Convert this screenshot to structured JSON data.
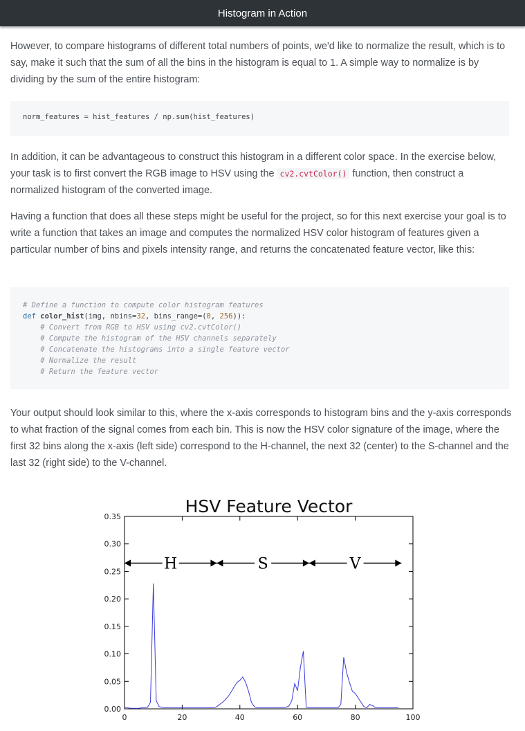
{
  "header": {
    "title": "Histogram in Action"
  },
  "paragraphs": {
    "p1": "However, to compare histograms of different total numbers of points, we'd like to normalize the result, which is to say, make it such that the sum of all the bins in the histogram is equal to 1. A simple way to normalize is by dividing by the sum of the entire histogram:",
    "p2_before": "In addition, it can be advantageous to construct this histogram in a different color space. In the exercise below, your task is to first convert the RGB image to HSV using the ",
    "p2_code": "cv2.cvtColor()",
    "p2_after": " function, then construct a normalized histogram of the converted image.",
    "p3": "Having a function that does all these steps might be useful for the project, so for this next exercise your goal is to write a function that takes an image and computes the normalized HSV color histogram of features given a particular number of bins and pixels intensity range, and returns the concatenated feature vector, like this:",
    "p4": "Your output should look similar to this, where the x-axis corresponds to histogram bins and the y-axis corresponds to what fraction of the signal comes from each bin. This is now the HSV color signature of the image, where the first 32 bins along the x-axis (left side) correspond to the H-channel, the next 32 (center) to the S-channel and the last 32 (right side) to the V-channel."
  },
  "code1": {
    "line": "norm_features = hist_features / np.sum(hist_features)"
  },
  "code2": {
    "l1": "# Define a function to compute color histogram features",
    "l2_kw": "def ",
    "l2_fn": "color_hist",
    "l2_rest_a": "(img, nbins=",
    "l2_n1": "32",
    "l2_rest_b": ", bins_range=(",
    "l2_n2": "0",
    "l2_rest_c": ", ",
    "l2_n3": "256",
    "l2_rest_d": ")):",
    "l3": "    # Convert from RGB to HSV using cv2.cvtColor()",
    "l4": "    # Compute the histogram of the HSV channels separately",
    "l5": "    # Concatenate the histograms into a single feature vector",
    "l6": "    # Normalize the result",
    "l7": "    # Return the feature vector"
  },
  "chart_data": {
    "type": "line",
    "title": "HSV Feature Vector",
    "xlabel": "",
    "ylabel": "",
    "xlim": [
      0,
      100
    ],
    "ylim": [
      0,
      0.35
    ],
    "xticks": [
      "0",
      "20",
      "40",
      "60",
      "80",
      "100"
    ],
    "yticks": [
      "0.00",
      "0.05",
      "0.10",
      "0.15",
      "0.20",
      "0.25",
      "0.30",
      "0.35"
    ],
    "grid": false,
    "color": "#3a3adb",
    "x": [
      0,
      1,
      2,
      3,
      4,
      5,
      6,
      7,
      8,
      9,
      10,
      11,
      12,
      13,
      14,
      15,
      16,
      17,
      18,
      19,
      20,
      21,
      22,
      23,
      24,
      25,
      26,
      27,
      28,
      29,
      30,
      31,
      32,
      33,
      34,
      35,
      36,
      37,
      38,
      39,
      40,
      41,
      42,
      43,
      44,
      45,
      46,
      47,
      48,
      49,
      50,
      51,
      52,
      53,
      54,
      55,
      56,
      57,
      58,
      59,
      60,
      61,
      62,
      63,
      64,
      65,
      66,
      67,
      68,
      69,
      70,
      71,
      72,
      73,
      74,
      75,
      76,
      77,
      78,
      79,
      80,
      81,
      82,
      83,
      84,
      85,
      86,
      87,
      88,
      89,
      90,
      91,
      92,
      93,
      94,
      95
    ],
    "y": [
      0.003,
      0.002,
      0.001,
      0.001,
      0.001,
      0.001,
      0.002,
      0.002,
      0.003,
      0.012,
      0.228,
      0.015,
      0.004,
      0.003,
      0.002,
      0.002,
      0.002,
      0.002,
      0.002,
      0.002,
      0.002,
      0.002,
      0.002,
      0.002,
      0.002,
      0.002,
      0.002,
      0.002,
      0.002,
      0.002,
      0.002,
      0.002,
      0.004,
      0.008,
      0.012,
      0.017,
      0.023,
      0.031,
      0.04,
      0.048,
      0.052,
      0.058,
      0.048,
      0.032,
      0.012,
      0.004,
      0.002,
      0.002,
      0.002,
      0.002,
      0.002,
      0.002,
      0.002,
      0.002,
      0.002,
      0.002,
      0.003,
      0.005,
      0.015,
      0.046,
      0.033,
      0.076,
      0.105,
      0.003,
      0.002,
      0.002,
      0.002,
      0.002,
      0.002,
      0.002,
      0.002,
      0.002,
      0.002,
      0.002,
      0.002,
      0.008,
      0.094,
      0.066,
      0.048,
      0.032,
      0.028,
      0.02,
      0.012,
      0.004,
      0.002,
      0.008,
      0.006,
      0.002,
      0.002,
      0.002,
      0.002,
      0.002,
      0.002,
      0.002,
      0.002,
      0.002
    ],
    "annotations": [
      {
        "label": "H",
        "x_start": 0,
        "x_end": 32,
        "y": 0.265
      },
      {
        "label": "S",
        "x_start": 32,
        "x_end": 64,
        "y": 0.265
      },
      {
        "label": "V",
        "x_start": 64,
        "x_end": 96,
        "y": 0.265
      }
    ]
  }
}
